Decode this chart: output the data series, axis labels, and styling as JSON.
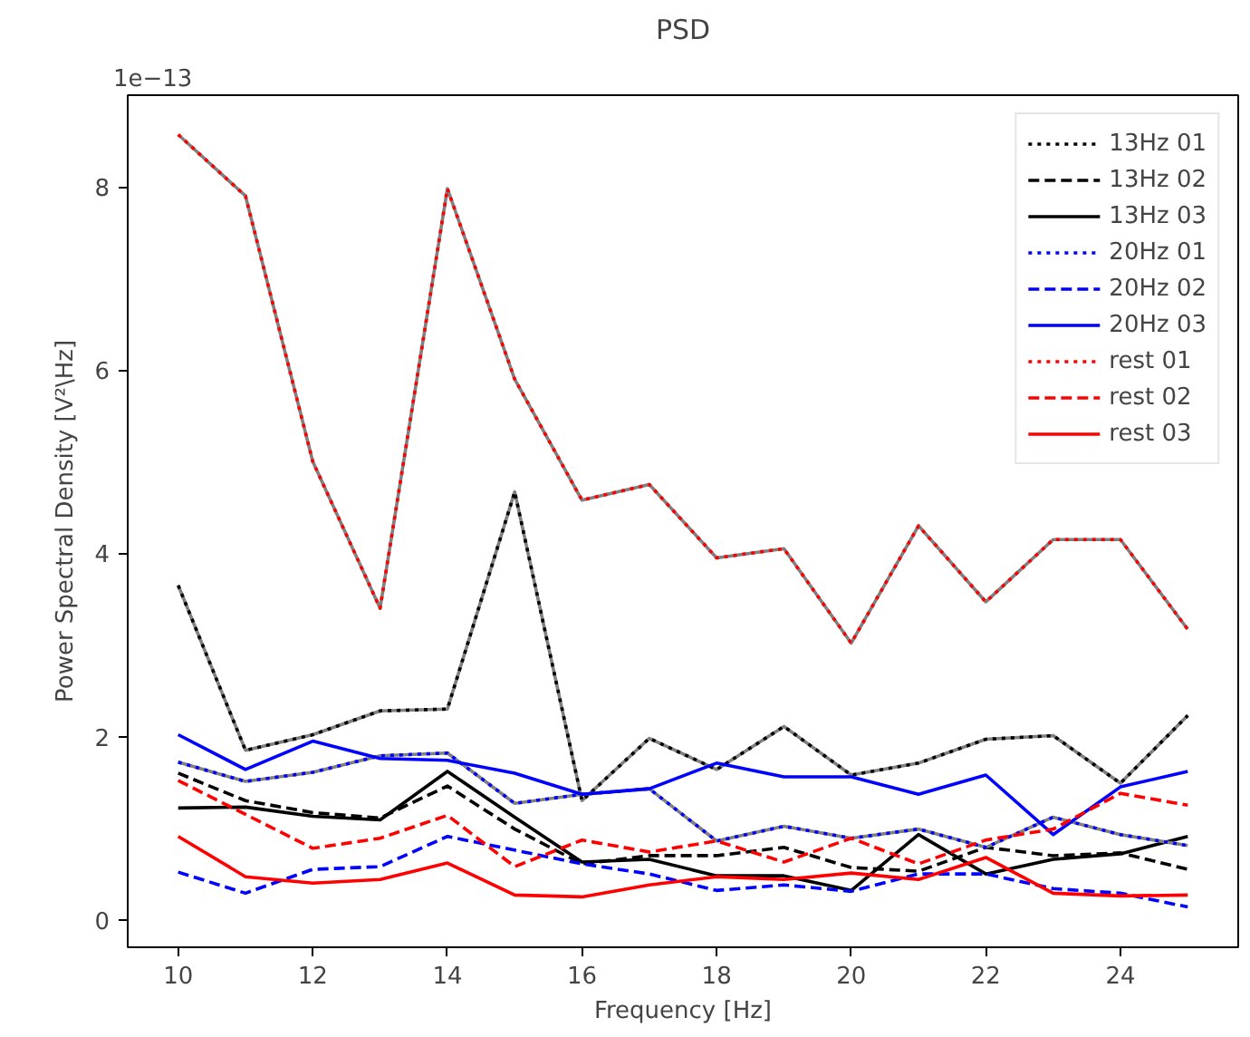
{
  "chart_data": {
    "type": "line",
    "title": "PSD",
    "xlabel": "Frequency [Hz]",
    "ylabel": "Power Spectral Density [V²\\Hz]",
    "annotations": [
      "1e−13"
    ],
    "x": [
      10,
      11,
      12,
      13,
      14,
      15,
      16,
      17,
      18,
      19,
      20,
      21,
      22,
      23,
      24,
      25
    ],
    "xlim": [
      9.25,
      25.75
    ],
    "xticks": [
      10,
      12,
      14,
      16,
      18,
      20,
      22,
      24
    ],
    "ylim": [
      -0.3,
      9.0
    ],
    "yticks": [
      0,
      2,
      4,
      6,
      8
    ],
    "grid": false,
    "legend": "top right",
    "series": [
      {
        "name": "13Hz 01",
        "color": "#000000",
        "line_style": "dotted",
        "values": [
          3.65,
          1.85,
          2.02,
          2.28,
          2.3,
          4.67,
          1.3,
          1.98,
          1.64,
          2.11,
          1.58,
          1.71,
          1.97,
          2.01,
          1.49,
          2.23
        ]
      },
      {
        "name": "13Hz 02",
        "color": "#000000",
        "line_style": "dashed",
        "values": [
          1.6,
          1.3,
          1.17,
          1.11,
          1.46,
          0.99,
          0.61,
          0.7,
          0.7,
          0.79,
          0.57,
          0.53,
          0.79,
          0.7,
          0.73,
          0.55
        ]
      },
      {
        "name": "13Hz 03",
        "color": "#000000",
        "line_style": "solid",
        "values": [
          1.22,
          1.23,
          1.13,
          1.09,
          1.62,
          1.12,
          0.63,
          0.66,
          0.48,
          0.48,
          0.32,
          0.93,
          0.5,
          0.66,
          0.72,
          0.91
        ]
      },
      {
        "name": "20Hz 01",
        "color": "#0000ff",
        "line_style": "dotted",
        "values": [
          1.72,
          1.51,
          1.61,
          1.79,
          1.82,
          1.27,
          1.37,
          1.43,
          0.86,
          1.02,
          0.89,
          0.99,
          0.79,
          1.12,
          0.93,
          0.81
        ]
      },
      {
        "name": "20Hz 02",
        "color": "#0000ff",
        "line_style": "dashed",
        "values": [
          0.52,
          0.29,
          0.55,
          0.58,
          0.91,
          0.76,
          0.61,
          0.5,
          0.32,
          0.38,
          0.31,
          0.5,
          0.5,
          0.34,
          0.29,
          0.14
        ]
      },
      {
        "name": "20Hz 03",
        "color": "#0000ff",
        "line_style": "solid",
        "values": [
          2.02,
          1.64,
          1.95,
          1.76,
          1.74,
          1.6,
          1.37,
          1.43,
          1.71,
          1.56,
          1.56,
          1.37,
          1.58,
          0.93,
          1.45,
          1.62
        ]
      },
      {
        "name": "rest 01",
        "color": "#ff0000",
        "line_style": "dotted",
        "values": [
          8.57,
          7.9,
          5.0,
          3.4,
          7.98,
          5.9,
          4.58,
          4.75,
          3.95,
          4.05,
          3.02,
          4.3,
          3.47,
          4.15,
          4.15,
          3.17
        ]
      },
      {
        "name": "rest 02",
        "color": "#ff0000",
        "line_style": "dashed",
        "values": [
          1.52,
          1.15,
          0.78,
          0.89,
          1.14,
          0.58,
          0.87,
          0.74,
          0.86,
          0.63,
          0.89,
          0.61,
          0.87,
          0.99,
          1.38,
          1.25
        ]
      },
      {
        "name": "rest 03",
        "color": "#ff0000",
        "line_style": "solid",
        "values": [
          0.91,
          0.47,
          0.4,
          0.44,
          0.62,
          0.27,
          0.25,
          0.38,
          0.47,
          0.44,
          0.51,
          0.44,
          0.68,
          0.29,
          0.26,
          0.27
        ]
      }
    ]
  }
}
